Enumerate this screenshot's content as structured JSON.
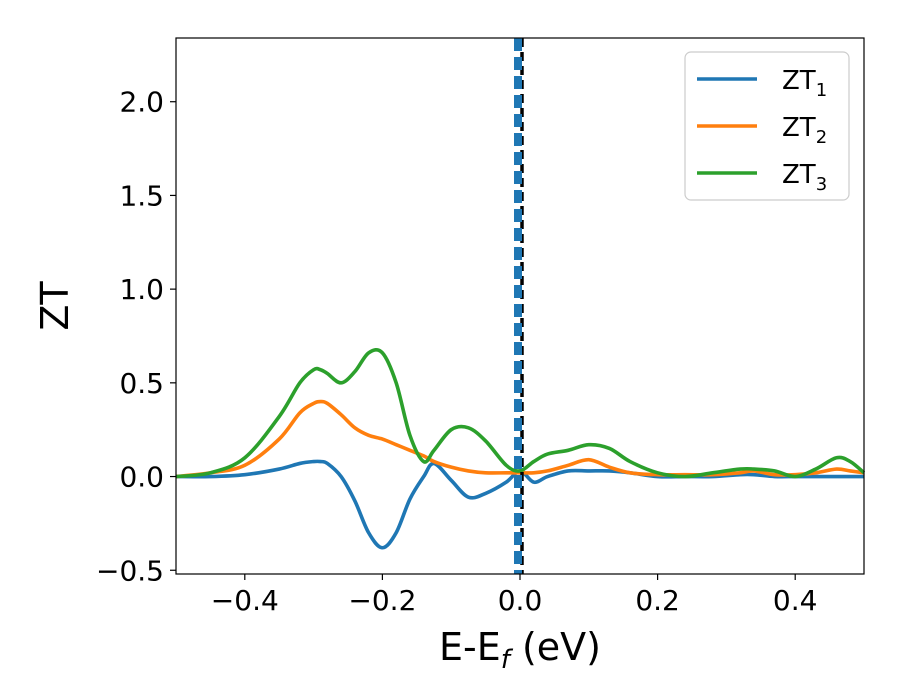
{
  "chart_data": {
    "type": "line",
    "title": "",
    "xlabel": {
      "main": "E-E",
      "sub": "f",
      "tail": " (eV)"
    },
    "ylabel": "ZT",
    "xlim": [
      -0.5,
      0.5
    ],
    "ylim": [
      -0.52,
      2.34
    ],
    "xticks": [
      -0.4,
      -0.2,
      0.0,
      0.2,
      0.4
    ],
    "xtick_labels": [
      "−0.4",
      "−0.2",
      "0.0",
      "0.2",
      "0.4"
    ],
    "yticks": [
      -0.5,
      0.0,
      0.5,
      1.0,
      1.5,
      2.0
    ],
    "ytick_labels": [
      "−0.5",
      "0.0",
      "0.5",
      "1.0",
      "1.5",
      "2.0"
    ],
    "grid": false,
    "legend_position": "top-right",
    "vertical_line": {
      "x": 0.0,
      "style": "blue-black dashed"
    },
    "x": [
      -0.5,
      -0.45,
      -0.4,
      -0.35,
      -0.32,
      -0.3,
      -0.29,
      -0.28,
      -0.26,
      -0.24,
      -0.22,
      -0.2,
      -0.18,
      -0.16,
      -0.14,
      -0.125,
      -0.1,
      -0.075,
      -0.05,
      -0.02,
      0.0,
      0.02,
      0.04,
      0.07,
      0.1,
      0.13,
      0.16,
      0.2,
      0.24,
      0.28,
      0.32,
      0.34,
      0.37,
      0.4,
      0.43,
      0.46,
      0.48,
      0.5
    ],
    "series": [
      {
        "name": "ZT",
        "subscript": "1",
        "color": "#1f77b4",
        "values": [
          0.0,
          0.0,
          0.01,
          0.04,
          0.07,
          0.08,
          0.08,
          0.07,
          0.0,
          -0.13,
          -0.3,
          -0.38,
          -0.3,
          -0.12,
          0.0,
          0.07,
          -0.02,
          -0.11,
          -0.09,
          -0.03,
          0.03,
          -0.03,
          0.0,
          0.03,
          0.03,
          0.03,
          0.02,
          0.0,
          0.0,
          0.0,
          0.01,
          0.01,
          0.0,
          0.0,
          0.0,
          0.0,
          0.0,
          0.0
        ]
      },
      {
        "name": "ZT",
        "subscript": "2",
        "color": "#ff7f0e",
        "values": [
          0.0,
          0.02,
          0.06,
          0.2,
          0.34,
          0.39,
          0.4,
          0.39,
          0.33,
          0.26,
          0.22,
          0.2,
          0.17,
          0.14,
          0.11,
          0.08,
          0.05,
          0.03,
          0.02,
          0.02,
          0.02,
          0.02,
          0.03,
          0.06,
          0.09,
          0.05,
          0.02,
          0.01,
          0.01,
          0.01,
          0.02,
          0.03,
          0.01,
          0.01,
          0.02,
          0.04,
          0.03,
          0.02
        ]
      },
      {
        "name": "ZT",
        "subscript": "3",
        "color": "#2ca02c",
        "values": [
          0.0,
          0.02,
          0.1,
          0.32,
          0.5,
          0.57,
          0.57,
          0.55,
          0.5,
          0.56,
          0.66,
          0.66,
          0.5,
          0.22,
          0.08,
          0.14,
          0.25,
          0.26,
          0.19,
          0.06,
          0.03,
          0.08,
          0.12,
          0.14,
          0.17,
          0.15,
          0.08,
          0.02,
          0.0,
          0.02,
          0.04,
          0.04,
          0.03,
          0.0,
          0.04,
          0.1,
          0.08,
          0.02
        ]
      }
    ]
  }
}
